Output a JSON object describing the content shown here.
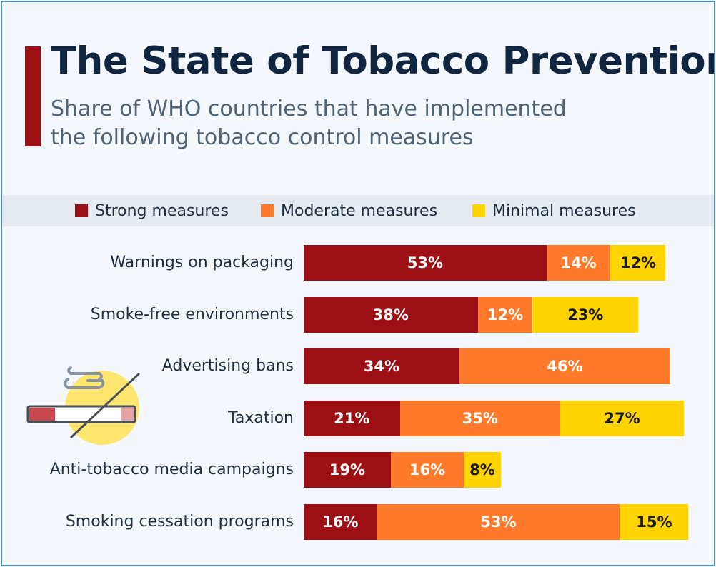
{
  "header": {
    "title": "The State of Tobacco Prevention",
    "subtitle": "Share of WHO countries that have implemented the following tobacco control measures"
  },
  "legend": [
    {
      "label": "Strong measures",
      "color": "#9c0f14"
    },
    {
      "label": "Moderate measures",
      "color": "#ff7a2a"
    },
    {
      "label": "Minimal measures",
      "color": "#ffd400"
    }
  ],
  "illustration": {
    "icon": "no-smoking-cigarette-icon"
  },
  "chart_data": {
    "type": "bar",
    "orientation": "horizontal",
    "stacked": true,
    "categories": [
      "Warnings on packaging",
      "Smoke-free environments",
      "Advertising bans",
      "Taxation",
      "Anti-tobacco media campaigns",
      "Smoking cessation programs"
    ],
    "series": [
      {
        "name": "Strong measures",
        "color": "#9c0f14",
        "text_color": "#ffffff",
        "values": [
          53,
          38,
          34,
          21,
          19,
          16
        ]
      },
      {
        "name": "Moderate measures",
        "color": "#ff7a2a",
        "text_color": "#ffffff",
        "values": [
          14,
          12,
          46,
          35,
          16,
          53
        ]
      },
      {
        "name": "Minimal measures",
        "color": "#ffd400",
        "text_color": "#1a1a1a",
        "values": [
          12,
          23,
          0,
          27,
          8,
          15
        ]
      }
    ],
    "value_suffix": "%",
    "xlim": [
      0,
      100
    ],
    "grid": false,
    "legend_position": "top"
  }
}
